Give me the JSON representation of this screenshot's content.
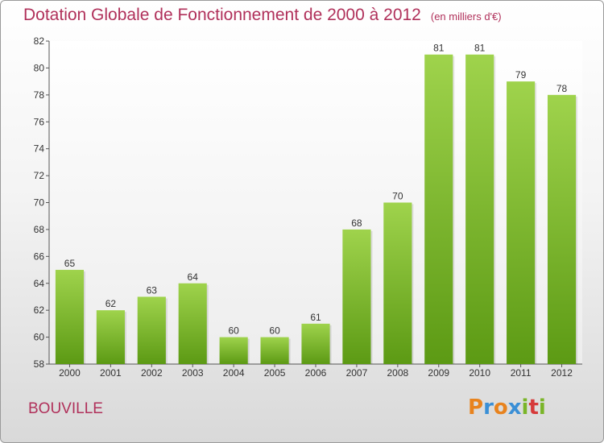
{
  "title": "Dotation Globale de Fonctionnement de 2000 à 2012",
  "subtitle": "(en milliers d'€)",
  "commune": "BOUVILLE",
  "logo": {
    "letters": [
      "P",
      "r",
      "o",
      "x",
      "i",
      "t",
      "i"
    ],
    "colors": [
      "#e8831e",
      "#3a8fd6",
      "#e8831e",
      "#3a8fd6",
      "#7ab528",
      "#d63a3a",
      "#7ab528"
    ]
  },
  "colors": {
    "title": "#b0305a",
    "bar_top": "#9fd34c",
    "bar_bottom": "#5c9a14",
    "axis": "#555555",
    "grid": "#e4e4e4"
  },
  "chart_data": {
    "type": "bar",
    "title": "Dotation Globale de Fonctionnement de 2000 à 2012",
    "subtitle": "(en milliers d'€)",
    "xlabel": "",
    "ylabel": "",
    "categories": [
      "2000",
      "2001",
      "2002",
      "2003",
      "2004",
      "2005",
      "2006",
      "2007",
      "2008",
      "2009",
      "2010",
      "2011",
      "2012"
    ],
    "values": [
      65,
      62,
      63,
      64,
      60,
      60,
      61,
      68,
      70,
      81,
      81,
      79,
      78
    ],
    "ylim": [
      58,
      82
    ],
    "yticks": [
      58,
      60,
      62,
      64,
      66,
      68,
      70,
      72,
      74,
      76,
      78,
      80,
      82
    ],
    "grid": false,
    "legend": "none"
  }
}
